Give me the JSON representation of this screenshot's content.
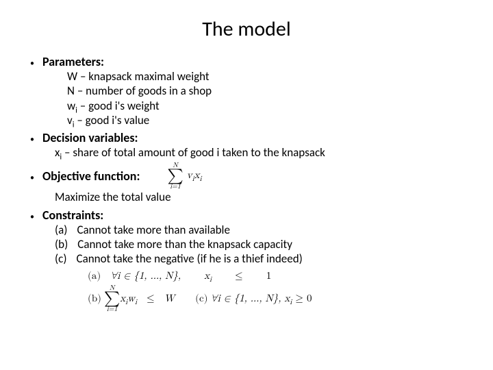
{
  "title": "The model",
  "sections": {
    "parameters": {
      "heading": "Parameters:",
      "lines": {
        "l1": "W – knapsack maximal weight",
        "l2": "N – number of goods in a shop",
        "l3_pre": "w",
        "l3_sub": "i",
        "l3_post": " – good i's weight",
        "l4_pre": "v",
        "l4_sub": "i",
        "l4_post": " – good i's value"
      }
    },
    "decision": {
      "heading": "Decision variables:",
      "line_pre": "x",
      "line_sub": "i",
      "line_post": " – share of total amount of good i taken to the knapsack"
    },
    "objective": {
      "heading": "Objective function:",
      "line": "Maximize the total value",
      "formula": {
        "sum_top": "N",
        "sum_bot": "i=1",
        "body_v": "v",
        "body_vi": "i",
        "body_x": "x",
        "body_xi": "i"
      }
    },
    "constraints": {
      "heading": "Constraints:",
      "items": {
        "a_label": "(a)",
        "a_text": "Cannot take more than available",
        "b_label": "(b)",
        "b_text": "Cannot take more than the knapsack capacity",
        "c_label": "(c)",
        "c_text": "Cannot take the negative (if he is a thief indeed)"
      },
      "formula_a": {
        "label": "(a)",
        "quant": "∀i ∈ {1, …, N},",
        "xi": "x",
        "xi_sub": "i",
        "rel": "≤",
        "rhs": "1"
      },
      "formula_b": {
        "label": "(b)",
        "sum_top": "N",
        "sum_bot": "i=1",
        "xi": "x",
        "xi_sub": "i",
        "wi": "w",
        "wi_sub": "i",
        "rel": "≤",
        "rhs": "W"
      },
      "formula_c": {
        "label": "(c)",
        "quant": "∀i ∈ {1, …, N},",
        "xi": "x",
        "xi_sub": "i",
        "rel": "≥ 0"
      }
    }
  },
  "colors": {
    "text": "#000000",
    "background": "#ffffff"
  },
  "typography": {
    "title_size_pt": 30,
    "heading_size_pt": 18,
    "body_size_pt": 17,
    "math_size_pt": 15
  }
}
